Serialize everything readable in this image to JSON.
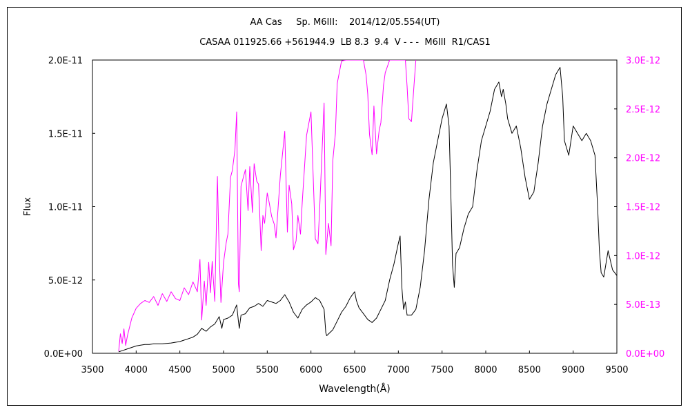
{
  "chart_data": {
    "type": "line",
    "title": "AA Cas     Sp. M6III:    2014/12/05.554(UT)",
    "subtitle": "CASAA 011925.66 +561944.9  LB 8.3  9.4  V - - -  M6III  R1/CAS1",
    "xlabel": "Wavelength(Å)",
    "ylabel": "Flux",
    "xlim": [
      3500,
      9500
    ],
    "ylim_left": [
      0,
      2e-11
    ],
    "ylim_right": [
      0,
      3e-12
    ],
    "x_ticks": [
      "3500",
      "4000",
      "4500",
      "5000",
      "5500",
      "6000",
      "6500",
      "7000",
      "7500",
      "8000",
      "8500",
      "9000",
      "9500"
    ],
    "y_ticks_left": [
      "0.0E+00",
      "5.0E-12",
      "1.0E-11",
      "1.5E-11",
      "2.0E-11"
    ],
    "y_ticks_right": [
      "0.0E+00",
      "5.0E-13",
      "1.0E-12",
      "1.5E-12",
      "2.0E-12",
      "2.5E-12",
      "3.0E-12"
    ],
    "grid": false,
    "colors": {
      "left_axis": "#000000",
      "right_axis": "#ff00ff",
      "frame": "#000000"
    },
    "series": [
      {
        "axis": "left",
        "color": "#000000",
        "x": [
          3800,
          3850,
          3900,
          3950,
          4000,
          4050,
          4100,
          4150,
          4200,
          4300,
          4400,
          4500,
          4550,
          4600,
          4650,
          4700,
          4750,
          4800,
          4850,
          4900,
          4950,
          4980,
          5000,
          5050,
          5100,
          5150,
          5170,
          5180,
          5200,
          5250,
          5300,
          5350,
          5400,
          5450,
          5500,
          5550,
          5600,
          5650,
          5700,
          5750,
          5800,
          5850,
          5900,
          5950,
          6000,
          6050,
          6100,
          6150,
          6170,
          6180,
          6250,
          6300,
          6350,
          6400,
          6450,
          6500,
          6520,
          6550,
          6600,
          6650,
          6700,
          6750,
          6800,
          6850,
          6900,
          6950,
          7000,
          7020,
          7040,
          7060,
          7080,
          7100,
          7150,
          7200,
          7250,
          7300,
          7350,
          7400,
          7450,
          7500,
          7550,
          7580,
          7600,
          7620,
          7640,
          7660,
          7700,
          7750,
          7800,
          7850,
          7900,
          7950,
          8000,
          8050,
          8100,
          8150,
          8180,
          8200,
          8230,
          8250,
          8300,
          8350,
          8400,
          8450,
          8500,
          8550,
          8600,
          8650,
          8700,
          8750,
          8800,
          8850,
          8880,
          8900,
          8950,
          9000,
          9050,
          9100,
          9150,
          9200,
          9250,
          9280,
          9300,
          9320,
          9350,
          9400,
          9450,
          9500
        ],
        "y": [
          1e-13,
          2e-13,
          3e-13,
          4e-13,
          5e-13,
          5.5e-13,
          6e-13,
          6e-13,
          6.5e-13,
          6.5e-13,
          7e-13,
          8e-13,
          9e-13,
          1e-12,
          1.1e-12,
          1.3e-12,
          1.7e-12,
          1.5e-12,
          1.8e-12,
          2e-12,
          2.5e-12,
          1.7e-12,
          2.3e-12,
          2.4e-12,
          2.6e-12,
          3.3e-12,
          2.2e-12,
          1.7e-12,
          2.6e-12,
          2.7e-12,
          3.1e-12,
          3.2e-12,
          3.4e-12,
          3.2e-12,
          3.6e-12,
          3.5e-12,
          3.4e-12,
          3.6e-12,
          4e-12,
          3.5e-12,
          2.8e-12,
          2.4e-12,
          3e-12,
          3.3e-12,
          3.5e-12,
          3.8e-12,
          3.6e-12,
          3e-12,
          1.4e-12,
          1.2e-12,
          1.6e-12,
          2.2e-12,
          2.8e-12,
          3.2e-12,
          3.8e-12,
          4.2e-12,
          3.6e-12,
          3.1e-12,
          2.7e-12,
          2.3e-12,
          2.1e-12,
          2.4e-12,
          3e-12,
          3.6e-12,
          5e-12,
          6.1e-12,
          7.5e-12,
          8e-12,
          4.5e-12,
          3e-12,
          3.5e-12,
          2.6e-12,
          2.6e-12,
          3e-12,
          4.5e-12,
          7e-12,
          1.05e-11,
          1.3e-11,
          1.45e-11,
          1.6e-11,
          1.7e-11,
          1.55e-11,
          1.1e-11,
          6e-12,
          4.5e-12,
          6.8e-12,
          7.2e-12,
          8.5e-12,
          9.5e-12,
          1e-11,
          1.25e-11,
          1.45e-11,
          1.55e-11,
          1.65e-11,
          1.8e-11,
          1.85e-11,
          1.75e-11,
          1.8e-11,
          1.7e-11,
          1.6e-11,
          1.5e-11,
          1.55e-11,
          1.4e-11,
          1.2e-11,
          1.05e-11,
          1.1e-11,
          1.3e-11,
          1.55e-11,
          1.7e-11,
          1.8e-11,
          1.9e-11,
          1.95e-11,
          1.75e-11,
          1.45e-11,
          1.35e-11,
          1.55e-11,
          1.5e-11,
          1.45e-11,
          1.5e-11,
          1.45e-11,
          1.35e-11,
          1e-11,
          7e-12,
          5.5e-12,
          5.2e-12,
          7e-12,
          5.7e-12,
          5.3e-12
        ]
      },
      {
        "axis": "right",
        "color": "#ff00ff",
        "x": [
          3800,
          3820,
          3840,
          3860,
          3880,
          3900,
          3950,
          4000,
          4050,
          4100,
          4150,
          4200,
          4250,
          4300,
          4350,
          4400,
          4450,
          4500,
          4550,
          4600,
          4650,
          4700,
          4730,
          4750,
          4780,
          4800,
          4830,
          4850,
          4870,
          4900,
          4930,
          4950,
          4970,
          5000,
          5030,
          5050,
          5080,
          5100,
          5130,
          5150,
          5170,
          5180,
          5200,
          5250,
          5280,
          5300,
          5330,
          5350,
          5380,
          5400,
          5430,
          5450,
          5470,
          5500,
          5520,
          5550,
          5580,
          5600,
          5650,
          5700,
          5730,
          5750,
          5780,
          5800,
          5830,
          5850,
          5880,
          5900,
          5950,
          6000,
          6050,
          6080,
          6100,
          6130,
          6150,
          6170,
          6200,
          6230,
          6250,
          6280,
          6300,
          6350,
          6400,
          6450,
          6500,
          6550,
          6600,
          6630,
          6650,
          6670,
          6700,
          6720,
          6750,
          6780,
          6800,
          6830,
          6850,
          6900,
          6950,
          7000,
          7050,
          7080,
          7100,
          7120,
          7150,
          7180,
          7200
        ],
        "y": [
          2e-14,
          2e-13,
          1e-13,
          2.5e-13,
          8e-14,
          1.8e-13,
          3.6e-13,
          4.6e-13,
          5.1e-13,
          5.4e-13,
          5.2e-13,
          5.8e-13,
          4.9e-13,
          6.1e-13,
          5.3e-13,
          6.3e-13,
          5.6e-13,
          5.4e-13,
          6.7e-13,
          6e-13,
          7.3e-13,
          6.3e-13,
          9.6e-13,
          3.4e-13,
          7.4e-13,
          4.9e-13,
          9.3e-13,
          6.2e-13,
          9.4e-13,
          5.3e-13,
          1.81e-12,
          1e-12,
          5.2e-13,
          9.3e-13,
          1.13e-12,
          1.22e-12,
          1.8e-12,
          1.87e-12,
          2.08e-12,
          2.47e-12,
          7.1e-13,
          6.3e-13,
          1.71e-12,
          1.88e-12,
          1.46e-12,
          1.91e-12,
          1.44e-12,
          1.94e-12,
          1.76e-12,
          1.73e-12,
          1.05e-12,
          1.41e-12,
          1.33e-12,
          1.64e-12,
          1.55e-12,
          1.4e-12,
          1.32e-12,
          1.18e-12,
          1.82e-12,
          2.27e-12,
          1.24e-12,
          1.72e-12,
          1.53e-12,
          1.06e-12,
          1.15e-12,
          1.41e-12,
          1.22e-12,
          1.54e-12,
          2.23e-12,
          2.47e-12,
          1.17e-12,
          1.12e-12,
          1.48e-12,
          2.13e-12,
          2.56e-12,
          1.01e-12,
          1.33e-12,
          1.1e-12,
          1.97e-12,
          2.25e-12,
          2.76e-12,
          2.99e-12,
          3e-12,
          3e-12,
          3e-12,
          3e-12,
          3e-12,
          2.85e-12,
          2.65e-12,
          2.24e-12,
          2.03e-12,
          2.53e-12,
          2.04e-12,
          2.28e-12,
          2.36e-12,
          2.74e-12,
          2.87e-12,
          3e-12,
          3e-12,
          3e-12,
          3e-12,
          3e-12,
          2.73e-12,
          2.4e-12,
          2.37e-12,
          2.75e-12,
          3e-12
        ]
      }
    ]
  }
}
